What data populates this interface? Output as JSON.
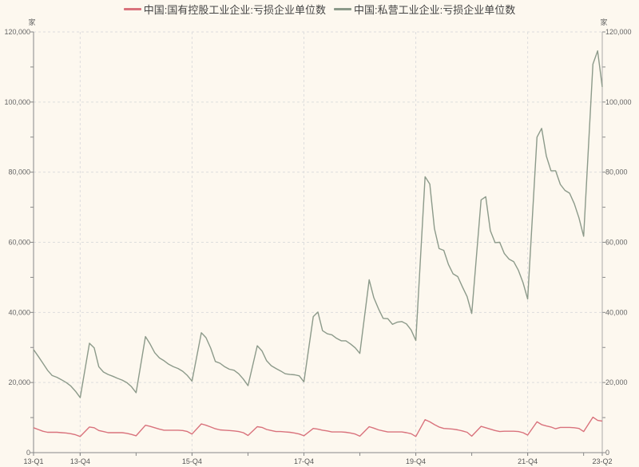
{
  "chart_data": {
    "type": "line",
    "title": "",
    "unit_left": "家",
    "unit_right": "家",
    "ylim": [
      0,
      120000
    ],
    "y_ticks": [
      "0",
      "20,000",
      "40,000",
      "60,000",
      "80,000",
      "100,000",
      "120,000"
    ],
    "y_tick_values": [
      0,
      20000,
      40000,
      60000,
      80000,
      100000,
      120000
    ],
    "x_tick_labels": [
      {
        "label": "13-Q1",
        "month": "2013-02"
      },
      {
        "label": "13-Q4",
        "month": "2013-12"
      },
      {
        "label": "15-Q4",
        "month": "2015-12"
      },
      {
        "label": "17-Q4",
        "month": "2017-12"
      },
      {
        "label": "19-Q4",
        "month": "2019-12"
      },
      {
        "label": "21-Q4",
        "month": "2021-12"
      },
      {
        "label": "23-Q2",
        "month": "2023-04"
      }
    ],
    "x_range": [
      "2013-02",
      "2023-04"
    ],
    "grid": true,
    "legend_position": "top",
    "x": [
      "2013-02",
      "2013-03",
      "2013-04",
      "2013-05",
      "2013-06",
      "2013-07",
      "2013-08",
      "2013-09",
      "2013-10",
      "2013-11",
      "2013-12",
      "2014-02",
      "2014-03",
      "2014-04",
      "2014-05",
      "2014-06",
      "2014-07",
      "2014-08",
      "2014-09",
      "2014-10",
      "2014-11",
      "2014-12",
      "2015-02",
      "2015-03",
      "2015-04",
      "2015-05",
      "2015-06",
      "2015-07",
      "2015-08",
      "2015-09",
      "2015-10",
      "2015-11",
      "2015-12",
      "2016-02",
      "2016-03",
      "2016-04",
      "2016-05",
      "2016-06",
      "2016-07",
      "2016-08",
      "2016-09",
      "2016-10",
      "2016-11",
      "2016-12",
      "2017-02",
      "2017-03",
      "2017-04",
      "2017-05",
      "2017-06",
      "2017-07",
      "2017-08",
      "2017-09",
      "2017-10",
      "2017-11",
      "2017-12",
      "2018-02",
      "2018-03",
      "2018-04",
      "2018-05",
      "2018-06",
      "2018-07",
      "2018-08",
      "2018-09",
      "2018-10",
      "2018-11",
      "2018-12",
      "2019-02",
      "2019-03",
      "2019-04",
      "2019-05",
      "2019-06",
      "2019-07",
      "2019-08",
      "2019-09",
      "2019-10",
      "2019-11",
      "2019-12",
      "2020-02",
      "2020-03",
      "2020-04",
      "2020-05",
      "2020-06",
      "2020-07",
      "2020-08",
      "2020-09",
      "2020-10",
      "2020-11",
      "2020-12",
      "2021-02",
      "2021-03",
      "2021-04",
      "2021-05",
      "2021-06",
      "2021-07",
      "2021-08",
      "2021-09",
      "2021-10",
      "2021-11",
      "2021-12",
      "2022-02",
      "2022-03",
      "2022-04",
      "2022-05",
      "2022-06",
      "2022-07",
      "2022-08",
      "2022-09",
      "2022-10",
      "2022-11",
      "2022-12",
      "2023-02",
      "2023-03",
      "2023-04"
    ],
    "series": [
      {
        "name": "中国:国有控股工业企业:亏损企业单位数",
        "color": "#d9727c",
        "values": [
          7100,
          6600,
          6100,
          5800,
          5800,
          5800,
          5700,
          5600,
          5400,
          5100,
          4600,
          7300,
          7100,
          6300,
          6000,
          5700,
          5700,
          5700,
          5700,
          5500,
          5200,
          4800,
          7800,
          7500,
          7100,
          6700,
          6400,
          6400,
          6400,
          6400,
          6300,
          6000,
          5300,
          8200,
          7800,
          7300,
          6800,
          6500,
          6400,
          6300,
          6200,
          6000,
          5700,
          4900,
          7400,
          7200,
          6600,
          6300,
          6000,
          6000,
          5900,
          5800,
          5600,
          5300,
          4800,
          6900,
          6700,
          6400,
          6200,
          5900,
          5900,
          5900,
          5800,
          5600,
          5300,
          4700,
          7400,
          7000,
          6500,
          6200,
          5900,
          5900,
          5900,
          5900,
          5700,
          5400,
          4600,
          9400,
          8800,
          8000,
          7300,
          6900,
          6800,
          6700,
          6500,
          6200,
          5800,
          4700,
          7500,
          7100,
          6700,
          6300,
          6000,
          6100,
          6100,
          6100,
          6000,
          5700,
          5000,
          8800,
          8000,
          7600,
          7300,
          6800,
          7200,
          7200,
          7200,
          7100,
          6900,
          6000,
          10100,
          9200,
          9000
        ]
      },
      {
        "name": "中国:私营工业企业:亏损企业单位数",
        "color": "#8c9a8a",
        "values": [
          29400,
          27500,
          25500,
          23500,
          22000,
          21500,
          20800,
          20000,
          19000,
          17500,
          15700,
          31200,
          29900,
          24500,
          23000,
          22300,
          21800,
          21200,
          20700,
          20000,
          18800,
          17100,
          33100,
          31000,
          28500,
          27000,
          26200,
          25200,
          24500,
          24000,
          23200,
          22000,
          20400,
          34200,
          32800,
          29800,
          26000,
          25500,
          24500,
          23800,
          23500,
          22500,
          21000,
          19100,
          30500,
          29000,
          26200,
          24800,
          24000,
          23300,
          22500,
          22300,
          22200,
          21900,
          20200,
          38800,
          40100,
          34800,
          33900,
          33600,
          32600,
          31900,
          31900,
          31000,
          29900,
          28300,
          49300,
          44200,
          41000,
          38300,
          38200,
          36600,
          37200,
          37400,
          36700,
          35000,
          32000,
          78700,
          76600,
          63900,
          58200,
          57700,
          53700,
          51000,
          50200,
          47300,
          44500,
          39700,
          72100,
          73000,
          63300,
          59900,
          60000,
          56800,
          55200,
          54500,
          52000,
          48500,
          43800,
          90000,
          92500,
          84600,
          80400,
          80400,
          76500,
          74800,
          74000,
          71000,
          67000,
          61700,
          110800,
          114600,
          104300
        ]
      }
    ]
  }
}
